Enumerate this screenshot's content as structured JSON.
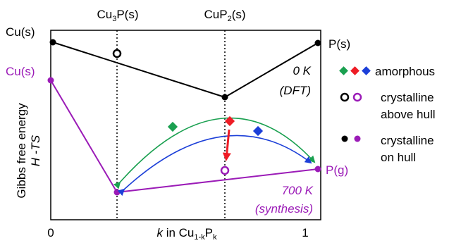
{
  "top_labels": {
    "cu3p": {
      "base": "Cu",
      "sub": "3",
      "rest": "P(s)"
    },
    "cup2": {
      "base": "CuP",
      "sub": "2",
      "rest": "(s)"
    }
  },
  "side_labels": {
    "cu_s_black": "Cu(s)",
    "cu_s_purple": "Cu(s)",
    "p_s": "P(s)",
    "p_g": "P(g)"
  },
  "annotations": {
    "zero_k": "0 K",
    "dft": "(DFT)",
    "seven_hundred_k": "700 K",
    "synthesis": "(synthesis)"
  },
  "y_axis": {
    "line1": "Gibbs free energy",
    "line2": "H -TS"
  },
  "x_axis": {
    "tick_0": "0",
    "tick_1": "1",
    "k": "k",
    "in_cu": " in Cu",
    "sub1": "1-k",
    "p": "P",
    "sub2": "k"
  },
  "legend": {
    "amorphous": "amorphous",
    "crystalline_above_line1": "crystalline",
    "crystalline_above_line2": "above hull",
    "crystalline_on_line1": "crystalline",
    "crystalline_on_line2": "on hull"
  },
  "colors": {
    "black": "#000000",
    "purple": "#9b1bb7",
    "green": "#1aa050",
    "red": "#ee1c25",
    "blue": "#1c3fd8"
  }
}
